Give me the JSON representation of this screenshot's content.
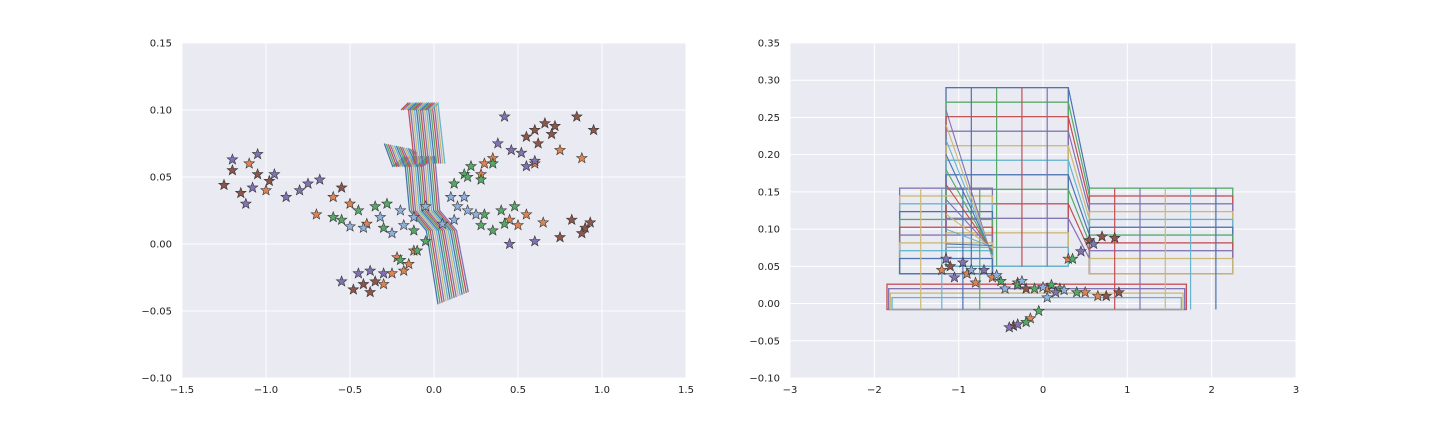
{
  "chart_data": [
    {
      "type": "scatter",
      "title": "",
      "xlabel": "",
      "ylabel": "",
      "xlim": [
        -1.5,
        1.5
      ],
      "ylim": [
        -0.1,
        0.15
      ],
      "xticks": [
        "−1.5",
        "−1.0",
        "−0.5",
        "0.0",
        "0.5",
        "1.0",
        "1.5"
      ],
      "xtick_values": [
        -1.5,
        -1.0,
        -0.5,
        0.0,
        0.5,
        1.0,
        1.5
      ],
      "yticks": [
        "−0.10",
        "−0.05",
        "0.00",
        "0.05",
        "0.10",
        "0.15"
      ],
      "ytick_values": [
        -0.1,
        -0.05,
        0.0,
        0.05,
        0.1,
        0.15
      ],
      "grid": true,
      "background": "#eaeaf2",
      "lines_description": "stack of 16 parallel zig-zag strips centered near x=0",
      "line_colors": [
        "#4c72b0",
        "#55a868",
        "#c44e52",
        "#8172b2",
        "#ccb974",
        "#64b5cd"
      ],
      "marker": "star",
      "series": [
        {
          "color": "#8c564b",
          "points": [
            [
              -1.25,
              0.044
            ],
            [
              -1.2,
              0.055
            ],
            [
              -1.15,
              0.038
            ],
            [
              -1.05,
              0.052
            ],
            [
              -0.98,
              0.047
            ],
            [
              -0.55,
              0.042
            ],
            [
              0.6,
              0.085
            ],
            [
              0.66,
              0.09
            ],
            [
              0.72,
              0.088
            ],
            [
              0.85,
              0.095
            ],
            [
              0.95,
              0.085
            ],
            [
              0.82,
              0.018
            ],
            [
              0.9,
              0.012
            ],
            [
              0.75,
              0.005
            ],
            [
              -0.48,
              -0.034
            ],
            [
              -0.42,
              -0.03
            ],
            [
              -0.38,
              -0.036
            ],
            [
              -0.35,
              -0.028
            ],
            [
              0.55,
              0.08
            ],
            [
              0.62,
              0.075
            ],
            [
              0.7,
              0.082
            ],
            [
              0.88,
              0.008
            ],
            [
              0.93,
              0.016
            ]
          ]
        },
        {
          "color": "#dd8452",
          "points": [
            [
              -1.1,
              0.06
            ],
            [
              -1.0,
              0.04
            ],
            [
              -0.7,
              0.022
            ],
            [
              -0.6,
              0.035
            ],
            [
              -0.5,
              0.03
            ],
            [
              -0.4,
              0.015
            ],
            [
              -0.22,
              -0.01
            ],
            [
              -0.18,
              -0.02
            ],
            [
              -0.15,
              -0.015
            ],
            [
              0.3,
              0.06
            ],
            [
              0.35,
              0.064
            ],
            [
              0.45,
              0.018
            ],
            [
              0.55,
              0.022
            ],
            [
              0.65,
              0.016
            ],
            [
              0.6,
              0.06
            ],
            [
              0.75,
              0.07
            ],
            [
              0.88,
              0.064
            ],
            [
              -0.3,
              -0.03
            ],
            [
              -0.25,
              -0.022
            ],
            [
              -0.12,
              -0.005
            ],
            [
              0.28,
              0.052
            ],
            [
              0.5,
              0.014
            ]
          ]
        },
        {
          "color": "#55a868",
          "points": [
            [
              -0.55,
              0.018
            ],
            [
              -0.45,
              0.025
            ],
            [
              -0.35,
              0.028
            ],
            [
              -0.28,
              0.03
            ],
            [
              -0.6,
              0.02
            ],
            [
              0.12,
              0.045
            ],
            [
              0.18,
              0.052
            ],
            [
              0.22,
              0.058
            ],
            [
              0.35,
              0.06
            ],
            [
              0.28,
              0.048
            ],
            [
              0.3,
              0.022
            ],
            [
              0.4,
              0.025
            ],
            [
              0.48,
              0.028
            ],
            [
              0.35,
              0.01
            ],
            [
              0.28,
              0.014
            ],
            [
              -0.1,
              -0.005
            ],
            [
              -0.05,
              0.002
            ],
            [
              -0.12,
              0.01
            ],
            [
              -0.2,
              -0.012
            ],
            [
              -0.3,
              0.012
            ],
            [
              0.2,
              0.05
            ],
            [
              0.42,
              0.015
            ]
          ]
        },
        {
          "color": "#8172b2",
          "points": [
            [
              -1.2,
              0.063
            ],
            [
              -1.05,
              0.067
            ],
            [
              -0.88,
              0.035
            ],
            [
              -0.8,
              0.04
            ],
            [
              -0.75,
              0.045
            ],
            [
              -0.68,
              0.048
            ],
            [
              -1.08,
              0.042
            ],
            [
              -1.12,
              0.03
            ],
            [
              -0.55,
              -0.028
            ],
            [
              -0.45,
              -0.022
            ],
            [
              -0.38,
              -0.02
            ],
            [
              -0.3,
              -0.022
            ],
            [
              0.42,
              0.095
            ],
            [
              0.46,
              0.07
            ],
            [
              0.52,
              0.068
            ],
            [
              0.55,
              0.058
            ],
            [
              0.6,
              0.062
            ],
            [
              0.38,
              0.075
            ],
            [
              0.6,
              0.002
            ],
            [
              0.45,
              0.0
            ],
            [
              -0.95,
              0.052
            ]
          ]
        },
        {
          "color": "#8fb1dc",
          "points": [
            [
              -0.42,
              0.012
            ],
            [
              -0.32,
              0.02
            ],
            [
              -0.2,
              0.025
            ],
            [
              -0.12,
              0.02
            ],
            [
              -0.05,
              0.028
            ],
            [
              0.1,
              0.035
            ],
            [
              0.14,
              0.028
            ],
            [
              0.2,
              0.025
            ],
            [
              0.25,
              0.022
            ],
            [
              0.18,
              0.035
            ],
            [
              0.05,
              0.015
            ],
            [
              -0.5,
              0.013
            ],
            [
              -0.25,
              0.008
            ],
            [
              -0.18,
              0.014
            ],
            [
              0.12,
              0.018
            ]
          ]
        }
      ]
    },
    {
      "type": "scatter",
      "title": "",
      "xlabel": "",
      "ylabel": "",
      "xlim": [
        -3,
        3
      ],
      "ylim": [
        -0.1,
        0.35
      ],
      "xticks": [
        "−3",
        "−2",
        "−1",
        "0",
        "1",
        "2",
        "3"
      ],
      "xtick_values": [
        -3,
        -2,
        -1,
        0,
        1,
        2,
        3
      ],
      "yticks": [
        "−0.10",
        "−0.05",
        "0.00",
        "0.05",
        "0.10",
        "0.15",
        "0.20",
        "0.25",
        "0.30",
        "0.35"
      ],
      "ytick_values": [
        -0.1,
        -0.05,
        0.0,
        0.05,
        0.1,
        0.15,
        0.2,
        0.25,
        0.3,
        0.35
      ],
      "grid": true,
      "background": "#eaeaf2",
      "lines_description": "wireframe grids of colored rectangles (T-shaped block) with receding perspective lines",
      "line_colors": [
        "#4c72b0",
        "#55a868",
        "#c44e52",
        "#8172b2",
        "#ccb974",
        "#64b5cd"
      ],
      "marker": "star",
      "series": [
        {
          "color": "#8c564b",
          "points": [
            [
              0.55,
              0.085
            ],
            [
              0.7,
              0.09
            ],
            [
              0.85,
              0.088
            ],
            [
              0.9,
              0.015
            ],
            [
              0.75,
              0.01
            ],
            [
              -0.35,
              -0.03
            ],
            [
              -1.1,
              0.05
            ],
            [
              -0.2,
              0.02
            ]
          ]
        },
        {
          "color": "#dd8452",
          "points": [
            [
              -1.2,
              0.045
            ],
            [
              -0.9,
              0.04
            ],
            [
              -0.6,
              0.035
            ],
            [
              -0.3,
              0.028
            ],
            [
              0.05,
              0.02
            ],
            [
              0.5,
              0.015
            ],
            [
              0.65,
              0.01
            ],
            [
              -0.15,
              -0.02
            ],
            [
              0.3,
              0.06
            ],
            [
              -0.8,
              0.028
            ]
          ]
        },
        {
          "color": "#55a868",
          "points": [
            [
              -0.5,
              0.03
            ],
            [
              -0.3,
              0.025
            ],
            [
              -0.1,
              0.02
            ],
            [
              0.1,
              0.025
            ],
            [
              0.4,
              0.015
            ],
            [
              0.35,
              0.06
            ],
            [
              -0.05,
              -0.01
            ],
            [
              -0.2,
              -0.025
            ],
            [
              0.2,
              0.02
            ]
          ]
        },
        {
          "color": "#8172b2",
          "points": [
            [
              -1.15,
              0.06
            ],
            [
              -0.95,
              0.055
            ],
            [
              -0.7,
              0.045
            ],
            [
              -0.4,
              -0.032
            ],
            [
              -0.3,
              -0.028
            ],
            [
              0.45,
              0.07
            ],
            [
              0.6,
              0.08
            ],
            [
              0.15,
              0.015
            ],
            [
              -1.05,
              0.035
            ]
          ]
        },
        {
          "color": "#8fb1dc",
          "points": [
            [
              -0.85,
              0.045
            ],
            [
              -0.55,
              0.038
            ],
            [
              -0.25,
              0.03
            ],
            [
              0.0,
              0.022
            ],
            [
              0.25,
              0.018
            ],
            [
              0.05,
              0.008
            ],
            [
              -0.45,
              0.02
            ]
          ]
        }
      ]
    }
  ]
}
